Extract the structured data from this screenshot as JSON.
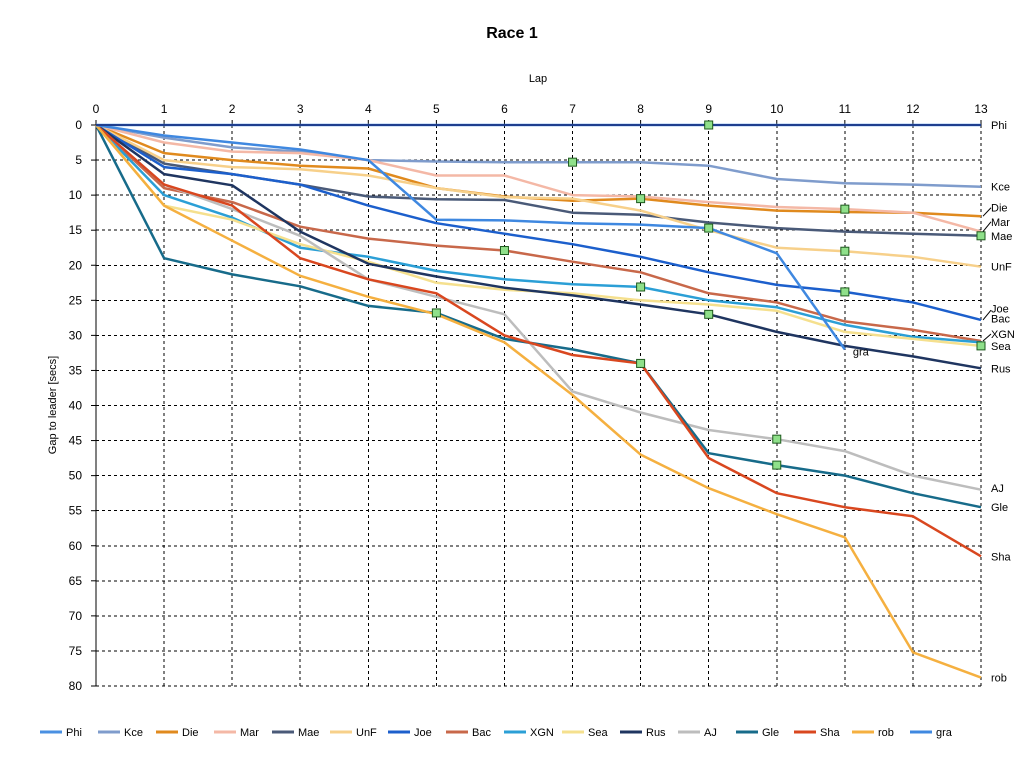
{
  "chart_data": {
    "type": "line",
    "title": "Race 1",
    "xlabel": "Lap",
    "ylabel": "Gap to leader [secs]",
    "xlim": [
      0,
      13
    ],
    "ylim": [
      0,
      80
    ],
    "y_reversed": true,
    "x_ticks": [
      0,
      1,
      2,
      3,
      4,
      5,
      6,
      7,
      8,
      9,
      10,
      11,
      12,
      13
    ],
    "y_ticks": [
      0,
      5,
      10,
      15,
      20,
      25,
      30,
      35,
      40,
      45,
      50,
      55,
      60,
      65,
      70,
      75,
      80
    ],
    "grid": true,
    "legend_position": "bottom",
    "series": [
      {
        "name": "Phi",
        "color": "#4a90e2",
        "values": [
          0,
          0,
          0,
          0,
          0,
          0,
          0,
          0,
          0,
          0,
          0,
          0,
          0,
          0
        ]
      },
      {
        "name": "Kce",
        "color": "#7f9ccc",
        "values": [
          0,
          1.8,
          3.2,
          3.8,
          5.0,
          5.2,
          5.3,
          5.3,
          5.3,
          5.8,
          7.7,
          8.3,
          8.5,
          8.8
        ]
      },
      {
        "name": "Die",
        "color": "#e08a1e",
        "values": [
          0,
          4.0,
          5.0,
          5.8,
          6.2,
          9.0,
          10.2,
          10.8,
          10.5,
          11.5,
          12.2,
          12.4,
          12.5,
          13.0
        ]
      },
      {
        "name": "Mar",
        "color": "#f4b8a6",
        "values": [
          0,
          2.5,
          3.8,
          4.0,
          5.0,
          7.2,
          7.2,
          10.0,
          10.2,
          11.0,
          11.7,
          12.0,
          12.5,
          15.2
        ]
      },
      {
        "name": "Mae",
        "color": "#4a5a78",
        "values": [
          0,
          5.5,
          7.0,
          8.5,
          10.2,
          10.6,
          10.7,
          12.5,
          12.8,
          13.9,
          14.7,
          15.2,
          15.5,
          15.8
        ]
      },
      {
        "name": "UnF",
        "color": "#f7d08a",
        "values": [
          0,
          5.0,
          6.0,
          6.3,
          7.2,
          9.0,
          10.3,
          10.5,
          12.2,
          15.0,
          17.5,
          18.0,
          18.8,
          20.2
        ]
      },
      {
        "name": "Joe",
        "color": "#1c5fcc",
        "values": [
          0,
          6.0,
          7.0,
          8.5,
          11.5,
          14.0,
          15.5,
          17.0,
          18.8,
          21.0,
          22.8,
          23.8,
          25.3,
          27.8
        ]
      },
      {
        "name": "Bac",
        "color": "#c8684a",
        "values": [
          0,
          9.0,
          11.0,
          14.5,
          16.2,
          17.2,
          17.9,
          19.5,
          21.0,
          24.0,
          25.3,
          28.0,
          29.2,
          30.8
        ]
      },
      {
        "name": "XGN",
        "color": "#2b9fd6",
        "values": [
          0,
          10.0,
          13.2,
          17.5,
          18.8,
          20.8,
          22.0,
          22.7,
          23.1,
          25.0,
          26.0,
          28.5,
          30.2,
          31.0
        ]
      },
      {
        "name": "Sea",
        "color": "#f5e08e",
        "values": [
          0,
          11.5,
          13.5,
          17.0,
          19.5,
          22.5,
          23.5,
          24.0,
          25.0,
          25.6,
          26.5,
          29.5,
          30.5,
          31.5
        ]
      },
      {
        "name": "Rus",
        "color": "#1f3560",
        "values": [
          0,
          7.0,
          8.6,
          15.2,
          19.8,
          21.6,
          23.2,
          24.3,
          25.6,
          27.0,
          29.5,
          31.5,
          33.0,
          34.7
        ]
      },
      {
        "name": "AJ",
        "color": "#bdbdbd",
        "values": [
          0,
          8.5,
          12.0,
          15.8,
          22.0,
          24.5,
          27.0,
          38.0,
          41.0,
          43.5,
          44.8,
          46.5,
          50.0,
          52.0
        ]
      },
      {
        "name": "Gle",
        "color": "#176b8a",
        "values": [
          0,
          19.0,
          21.3,
          23.0,
          25.8,
          26.8,
          30.5,
          32.0,
          34.0,
          46.8,
          48.5,
          50.0,
          52.5,
          54.5
        ]
      },
      {
        "name": "Sha",
        "color": "#d9471f",
        "values": [
          0,
          8.5,
          11.5,
          19.0,
          22.0,
          24.0,
          30.0,
          32.8,
          34.0,
          47.5,
          52.5,
          54.5,
          55.8,
          61.5
        ]
      },
      {
        "name": "rob",
        "color": "#f5b040",
        "values": [
          0,
          11.5,
          16.5,
          21.5,
          24.5,
          27.0,
          31.0,
          38.5,
          47.0,
          51.8,
          55.5,
          58.8,
          75.2,
          78.8
        ]
      },
      {
        "name": "gra",
        "color": "#3f88e0",
        "values": [
          0,
          1.5,
          2.5,
          3.5,
          5.0,
          13.5,
          13.6,
          14.0,
          14.2,
          14.7,
          18.3,
          32.0,
          null,
          null
        ]
      }
    ],
    "markers": [
      {
        "x": 9,
        "y": 0
      },
      {
        "x": 7,
        "y": 5.3
      },
      {
        "x": 8,
        "y": 10.5
      },
      {
        "x": 11,
        "y": 12.0
      },
      {
        "x": 9,
        "y": 14.7
      },
      {
        "x": 13,
        "y": 15.8
      },
      {
        "x": 6,
        "y": 17.9
      },
      {
        "x": 11,
        "y": 18.0
      },
      {
        "x": 8,
        "y": 23.1
      },
      {
        "x": 11,
        "y": 23.8
      },
      {
        "x": 5,
        "y": 26.8
      },
      {
        "x": 9,
        "y": 27.0
      },
      {
        "x": 13,
        "y": 31.5
      },
      {
        "x": 8,
        "y": 34.0
      },
      {
        "x": 10,
        "y": 44.8
      },
      {
        "x": 10,
        "y": 48.5
      }
    ],
    "end_labels": [
      {
        "text": "Phi",
        "lap": 13,
        "gap": 0
      },
      {
        "text": "Kce",
        "lap": 13,
        "gap": 8.8
      },
      {
        "text": "Die",
        "lap": 13,
        "gap": 11.8
      },
      {
        "text": "Mar",
        "lap": 13,
        "gap": 13.8
      },
      {
        "text": "Mae",
        "lap": 13,
        "gap": 15.8
      },
      {
        "text": "UnF",
        "lap": 13,
        "gap": 20.2
      },
      {
        "text": "Joe",
        "lap": 13,
        "gap": 26.2
      },
      {
        "text": "Bac",
        "lap": 13,
        "gap": 27.6
      },
      {
        "text": "XGN",
        "lap": 13,
        "gap": 29.8
      },
      {
        "text": "Sea",
        "lap": 13,
        "gap": 31.5
      },
      {
        "text": "gra",
        "lap": 11,
        "gap": 32.3
      },
      {
        "text": "Rus",
        "lap": 13,
        "gap": 34.7
      },
      {
        "text": "AJ",
        "lap": 13,
        "gap": 51.8
      },
      {
        "text": "Gle",
        "lap": 13,
        "gap": 54.5
      },
      {
        "text": "Sha",
        "lap": 13,
        "gap": 61.5
      },
      {
        "text": "rob",
        "lap": 13,
        "gap": 78.8
      }
    ]
  }
}
